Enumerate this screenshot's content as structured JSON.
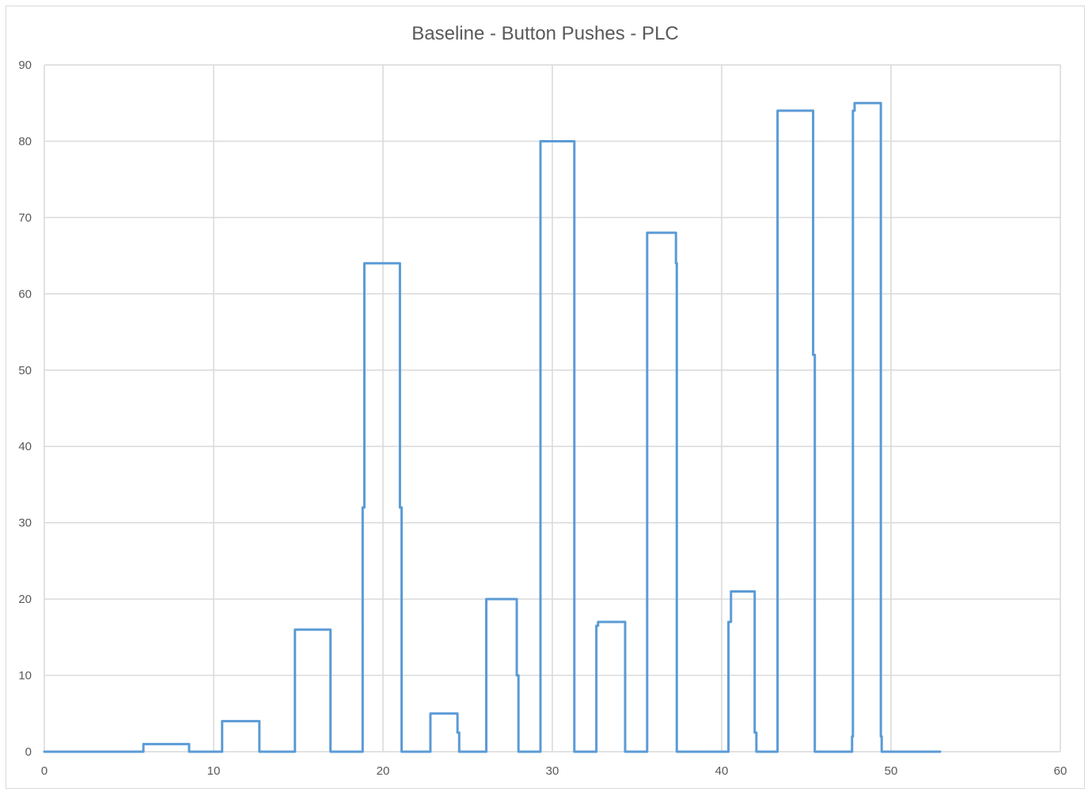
{
  "chart_data": {
    "type": "line",
    "title": "Baseline - Button Pushes - PLC",
    "xlabel": "",
    "ylabel": "",
    "xlim": [
      0,
      60
    ],
    "ylim": [
      0,
      90
    ],
    "x_ticks": [
      "0",
      "10",
      "20",
      "30",
      "40",
      "50",
      "60"
    ],
    "y_ticks": [
      "0",
      "10",
      "20",
      "30",
      "40",
      "50",
      "60",
      "70",
      "80",
      "90"
    ],
    "grid": true,
    "legend": "none",
    "line_style": "step",
    "series": [
      {
        "color": "#5b9bd5",
        "points": [
          [
            0,
            0
          ],
          [
            5.85,
            0
          ],
          [
            5.85,
            1
          ],
          [
            8.55,
            1
          ],
          [
            8.55,
            0
          ],
          [
            10.5,
            0
          ],
          [
            10.5,
            4
          ],
          [
            12.7,
            4
          ],
          [
            12.7,
            0
          ],
          [
            14.8,
            0
          ],
          [
            14.8,
            16
          ],
          [
            16.9,
            16
          ],
          [
            16.9,
            0
          ],
          [
            18.8,
            0
          ],
          [
            18.8,
            32
          ],
          [
            18.9,
            32
          ],
          [
            18.9,
            64
          ],
          [
            21.0,
            64
          ],
          [
            21.0,
            32
          ],
          [
            21.1,
            32
          ],
          [
            21.1,
            0
          ],
          [
            22.8,
            0
          ],
          [
            22.8,
            5
          ],
          [
            24.4,
            5
          ],
          [
            24.4,
            2.5
          ],
          [
            24.5,
            2.5
          ],
          [
            24.5,
            0
          ],
          [
            26.1,
            0
          ],
          [
            26.1,
            20
          ],
          [
            27.9,
            20
          ],
          [
            27.9,
            10
          ],
          [
            28.0,
            10
          ],
          [
            28.0,
            0
          ],
          [
            29.3,
            0
          ],
          [
            29.3,
            80
          ],
          [
            31.3,
            80
          ],
          [
            31.3,
            0
          ],
          [
            32.6,
            0
          ],
          [
            32.6,
            16.5
          ],
          [
            32.7,
            16.5
          ],
          [
            32.7,
            17
          ],
          [
            34.3,
            17
          ],
          [
            34.3,
            0
          ],
          [
            35.6,
            0
          ],
          [
            35.6,
            68
          ],
          [
            37.3,
            68
          ],
          [
            37.3,
            64
          ],
          [
            37.35,
            64
          ],
          [
            37.35,
            0
          ],
          [
            40.4,
            0
          ],
          [
            40.4,
            17
          ],
          [
            40.55,
            17
          ],
          [
            40.55,
            21
          ],
          [
            41.95,
            21
          ],
          [
            41.95,
            2.5
          ],
          [
            42.05,
            2.5
          ],
          [
            42.05,
            0
          ],
          [
            43.3,
            0
          ],
          [
            43.3,
            84
          ],
          [
            45.4,
            84
          ],
          [
            45.4,
            52
          ],
          [
            45.5,
            52
          ],
          [
            45.5,
            0
          ],
          [
            47.7,
            0
          ],
          [
            47.7,
            2
          ],
          [
            47.75,
            2
          ],
          [
            47.75,
            84
          ],
          [
            47.85,
            84
          ],
          [
            47.85,
            85
          ],
          [
            49.4,
            85
          ],
          [
            49.4,
            2
          ],
          [
            49.45,
            2
          ],
          [
            49.45,
            0
          ],
          [
            52.9,
            0
          ]
        ]
      }
    ]
  }
}
